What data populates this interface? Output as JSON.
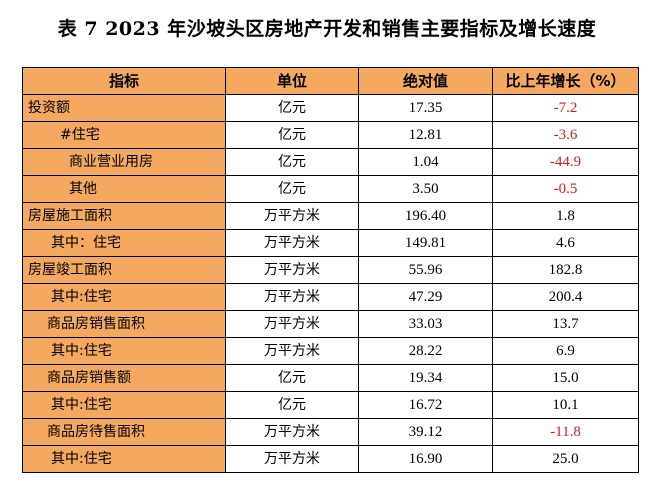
{
  "title": "表 7    2023 年沙坡头区房地产开发和销售主要指标及增长速度",
  "headers": [
    "指标",
    "单位",
    "绝对值",
    "比上年增长（%）"
  ],
  "rows": [
    {
      "name": "投资额",
      "unit": "亿元",
      "value": "17.35",
      "growth": "-7.2",
      "indent": 0
    },
    {
      "name": "#住宅",
      "unit": "亿元",
      "value": "12.81",
      "growth": "-3.6",
      "indent": 1
    },
    {
      "name": "商业营业用房",
      "unit": "亿元",
      "value": "1.04",
      "growth": "-44.9",
      "indent": 2
    },
    {
      "name": "其他",
      "unit": "亿元",
      "value": "3.50",
      "growth": "-0.5",
      "indent": 2
    },
    {
      "name": "房屋施工面积",
      "unit": "万平方米",
      "value": "196.40",
      "growth": "1.8",
      "indent": 0
    },
    {
      "name": "其中：住宅",
      "unit": "万平方米",
      "value": "149.81",
      "growth": "4.6",
      "indent": 3
    },
    {
      "name": "房屋竣工面积",
      "unit": "万平方米",
      "value": "55.96",
      "growth": "182.8",
      "indent": 0
    },
    {
      "name": "其中:住宅",
      "unit": "万平方米",
      "value": "47.29",
      "growth": "200.4",
      "indent": 3
    },
    {
      "name": "商品房销售面积",
      "unit": "万平方米",
      "value": "33.03",
      "growth": "13.7",
      "indent": 4
    },
    {
      "name": "其中:住宅",
      "unit": "万平方米",
      "value": "28.22",
      "growth": "6.9",
      "indent": 3
    },
    {
      "name": "商品房销售额",
      "unit": "亿元",
      "value": "19.34",
      "growth": "15.0",
      "indent": 4
    },
    {
      "name": "其中:住宅",
      "unit": "亿元",
      "value": "16.72",
      "growth": "10.1",
      "indent": 3
    },
    {
      "name": "商品房待售面积",
      "unit": "万平方米",
      "value": "39.12",
      "growth": "-11.8",
      "indent": 4
    },
    {
      "name": "其中:住宅",
      "unit": "万平方米",
      "value": "16.90",
      "growth": "25.0",
      "indent": 3
    }
  ],
  "colors": {
    "header_bg": "#f4a860",
    "name_bg": "#f4a860",
    "negative": "#e3181b"
  }
}
